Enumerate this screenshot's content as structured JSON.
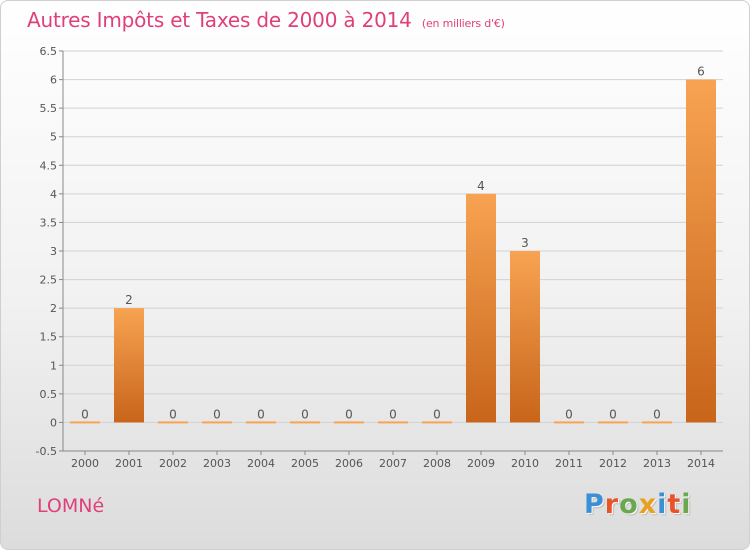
{
  "header": {
    "title": "Autres Impôts et Taxes de 2000 à 2014",
    "subtitle": "(en milliers d'€)"
  },
  "footer": {
    "commune": "LOMNé",
    "logo_letters": [
      "P",
      "r",
      "o",
      "x",
      "i",
      "t",
      "i"
    ],
    "logo_colors": [
      "#3a8fd6",
      "#e8532a",
      "#6aa84f",
      "#e8a020",
      "#3a8fd6",
      "#e8532a",
      "#6aa84f"
    ]
  },
  "chart_data": {
    "type": "bar",
    "categories": [
      "2000",
      "2001",
      "2002",
      "2003",
      "2004",
      "2005",
      "2006",
      "2007",
      "2008",
      "2009",
      "2010",
      "2011",
      "2012",
      "2013",
      "2014"
    ],
    "values": [
      0,
      2,
      0,
      0,
      0,
      0,
      0,
      0,
      0,
      4,
      3,
      0,
      0,
      0,
      6
    ],
    "data_labels": [
      "0",
      "2",
      "0",
      "0",
      "0",
      "0",
      "0",
      "0",
      "0",
      "4",
      "3",
      "0",
      "0",
      "0",
      "6"
    ],
    "yticks": [
      -0.5,
      0,
      0.5,
      1,
      1.5,
      2,
      2.5,
      3,
      3.5,
      4,
      4.5,
      5,
      5.5,
      6,
      6.5
    ],
    "ytick_labels": [
      "-0.5",
      "0",
      "0.5",
      "1",
      "1.5",
      "2",
      "2.5",
      "3",
      "3.5",
      "4",
      "4.5",
      "5",
      "5.5",
      "6",
      "6.5"
    ],
    "ylim": [
      -0.5,
      6.5
    ],
    "grid": "horizontal",
    "bar_color_light": "#f7a352",
    "bar_color_dark": "#c8651a",
    "label_color": "#555555"
  }
}
